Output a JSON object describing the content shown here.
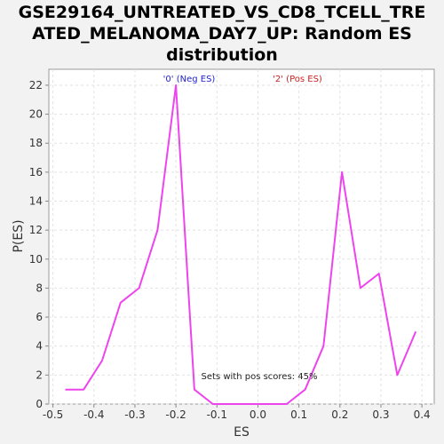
{
  "chart_data": {
    "type": "line",
    "title": [
      "GSE29164_UNTREATED_VS_CD8_TCELL_TRE",
      "ATED_MELANOMA_DAY7_UP: Random ES",
      "distribution"
    ],
    "xlabel": "ES",
    "ylabel": "P(ES)",
    "xlim": [
      -0.51,
      0.43
    ],
    "ylim": [
      0,
      23.1
    ],
    "xticks": [
      "-0.5",
      "-0.4",
      "-0.3",
      "-0.2",
      "-0.1",
      "0.0",
      "0.1",
      "0.2",
      "0.3",
      "0.4"
    ],
    "xtick_values": [
      -0.5,
      -0.4,
      -0.3,
      -0.2,
      -0.1,
      0.0,
      0.1,
      0.2,
      0.3,
      0.4
    ],
    "yticks": [
      "0",
      "2",
      "4",
      "6",
      "8",
      "10",
      "12",
      "14",
      "16",
      "18",
      "20",
      "22"
    ],
    "ytick_values": [
      0,
      2,
      4,
      6,
      8,
      10,
      12,
      14,
      16,
      18,
      20,
      22
    ],
    "grid": true,
    "series": [
      {
        "color": "#ee44ee",
        "x": [
          -0.47,
          -0.425,
          -0.38,
          -0.335,
          -0.29,
          -0.245,
          -0.2,
          -0.155,
          -0.11,
          -0.065,
          -0.02,
          0.025,
          0.07,
          0.115,
          0.16,
          0.205,
          0.25,
          0.295,
          0.34,
          0.385
        ],
        "y": [
          1,
          1,
          3,
          7,
          8,
          12,
          22,
          1,
          0,
          0,
          0,
          0,
          0,
          1,
          4,
          16,
          8,
          9,
          2,
          5
        ]
      }
    ],
    "annotations": [
      {
        "text": "'0' (Neg ES)",
        "color": "#2222cc"
      },
      {
        "text": "'2' (Pos ES)",
        "color": "#cc2222"
      },
      {
        "text": "Sets with pos scores: 45%",
        "color": "#222222"
      }
    ]
  }
}
